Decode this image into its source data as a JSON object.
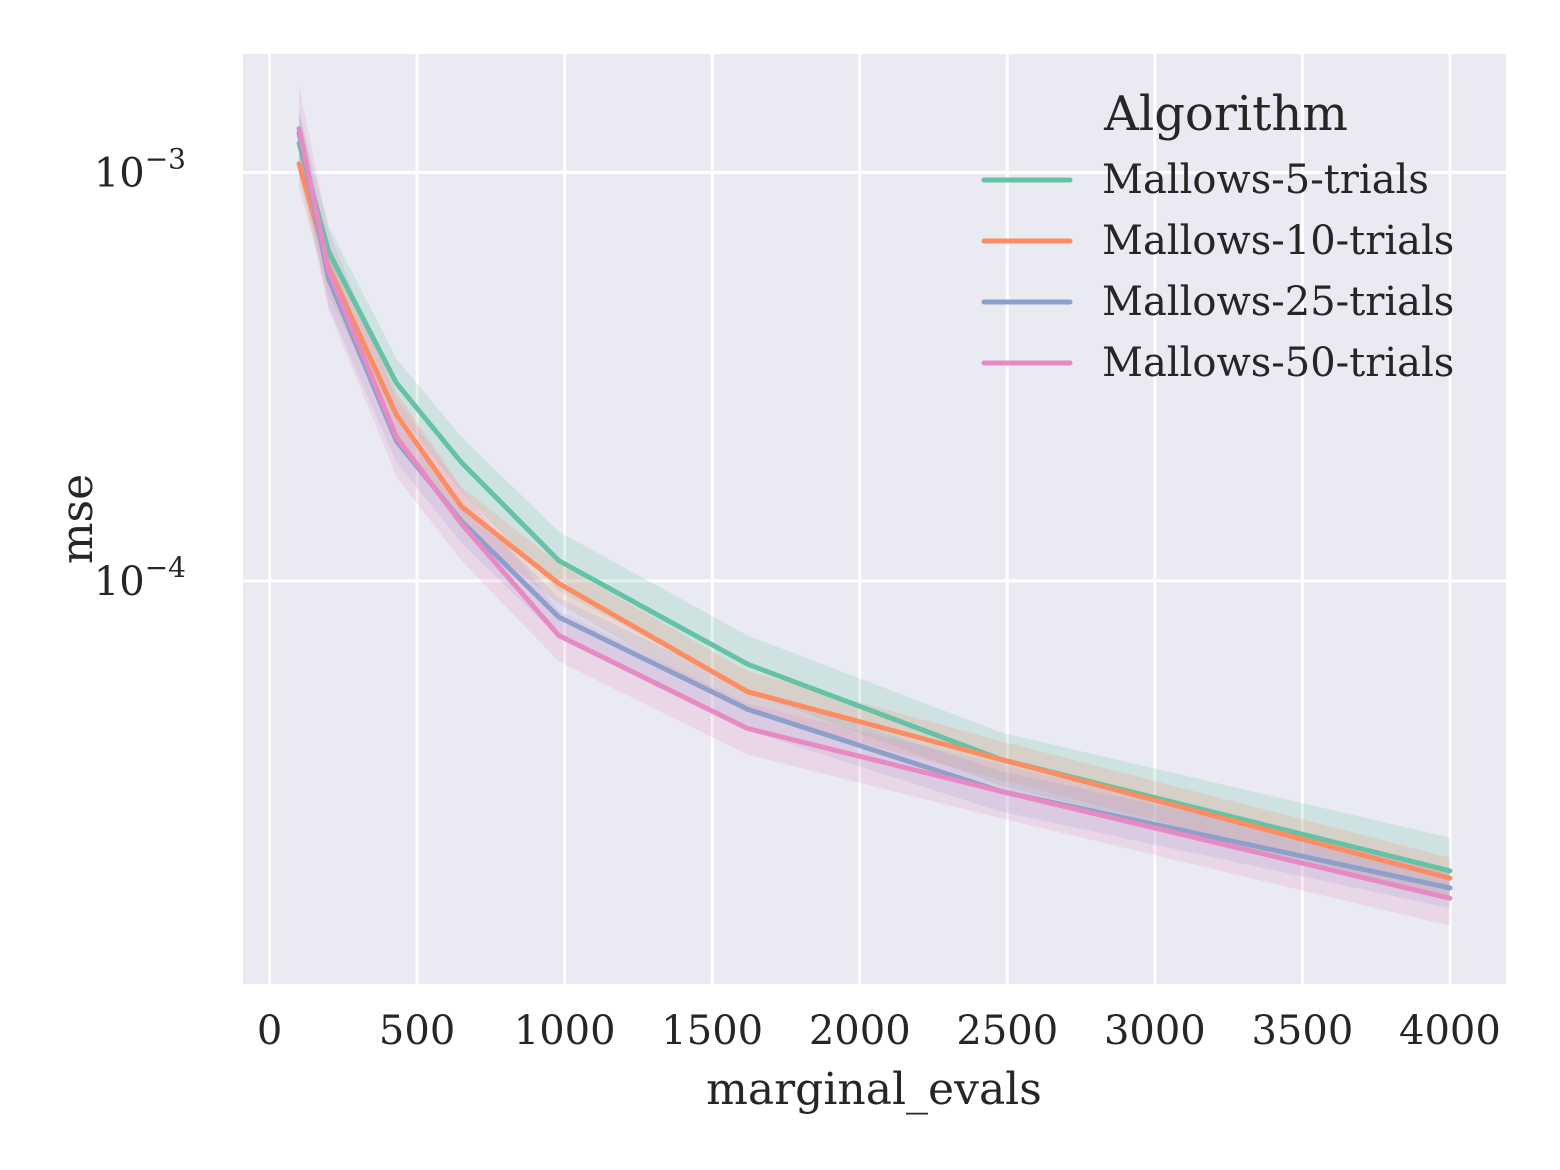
{
  "chart_data": {
    "type": "line",
    "title": "",
    "xlabel": "marginal_evals",
    "ylabel": "mse",
    "xlim": [
      -90,
      4190
    ],
    "ylim": [
      1.03e-05,
      0.00195
    ],
    "yscale": "log",
    "grid": true,
    "xticks": [
      0,
      500,
      1000,
      1500,
      2000,
      2500,
      3000,
      3500,
      4000
    ],
    "xtick_labels": [
      "0",
      "500",
      "1000",
      "1500",
      "2000",
      "2500",
      "3000",
      "3500",
      "4000"
    ],
    "yticks": [
      0.001,
      0.0001
    ],
    "ytick_labels": [
      {
        "base": "10",
        "exp": "−3"
      },
      {
        "base": "10",
        "exp": "−4"
      }
    ],
    "legend": {
      "title": "Algorithm",
      "placement": "top-right"
    },
    "x": [
      100,
      200,
      430,
      650,
      980,
      1620,
      2480,
      4000
    ],
    "series": [
      {
        "name": "Mallows-5-trials",
        "color": "#66c2a5",
        "values": [
          0.00118,
          0.00064,
          0.000305,
          0.000195,
          0.000112,
          6.25e-05,
          3.65e-05,
          1.95e-05
        ],
        "lower": [
          0.00098,
          0.00054,
          0.00026,
          0.000165,
          9.45e-05,
          5.35e-05,
          3.15e-05,
          1.65e-05
        ],
        "upper": [
          0.00138,
          0.00074,
          0.00035,
          0.000225,
          0.000132,
          7.35e-05,
          4.25e-05,
          2.35e-05
        ]
      },
      {
        "name": "Mallows-10-trials",
        "color": "#fc8d62",
        "values": [
          0.00105,
          0.000585,
          0.000255,
          0.000152,
          9.85e-05,
          5.35e-05,
          3.65e-05,
          1.87e-05
        ],
        "lower": [
          0.00092,
          0.0005,
          0.000225,
          0.000135,
          8.8e-05,
          4.75e-05,
          3.25e-05,
          1.67e-05
        ],
        "upper": [
          0.0012,
          0.00067,
          0.00029,
          0.00017,
          0.00011,
          6e-05,
          4.05e-05,
          2.1e-05
        ]
      },
      {
        "name": "Mallows-25-trials",
        "color": "#8da0cb",
        "values": [
          0.00125,
          0.00055,
          0.00022,
          0.00014,
          8.15e-05,
          4.85e-05,
          3.05e-05,
          1.77e-05
        ],
        "lower": [
          0.00107,
          0.00047,
          0.000195,
          0.000124,
          7.25e-05,
          4.3e-05,
          2.72e-05,
          1.58e-05
        ],
        "upper": [
          0.00145,
          0.00063,
          0.000248,
          0.000157,
          9.1e-05,
          5.45e-05,
          3.42e-05,
          1.97e-05
        ]
      },
      {
        "name": "Mallows-50-trials",
        "color": "#e78ac3",
        "values": [
          0.00128,
          0.000575,
          0.000225,
          0.000138,
          7.35e-05,
          4.35e-05,
          3.05e-05,
          1.67e-05
        ],
        "lower": [
          0.001,
          0.00046,
          0.00018,
          0.000112,
          6.35e-05,
          3.75e-05,
          2.62e-05,
          1.43e-05
        ],
        "upper": [
          0.00163,
          0.00072,
          0.00028,
          0.000168,
          8.45e-05,
          5e-05,
          3.55e-05,
          1.93e-05
        ]
      }
    ]
  }
}
